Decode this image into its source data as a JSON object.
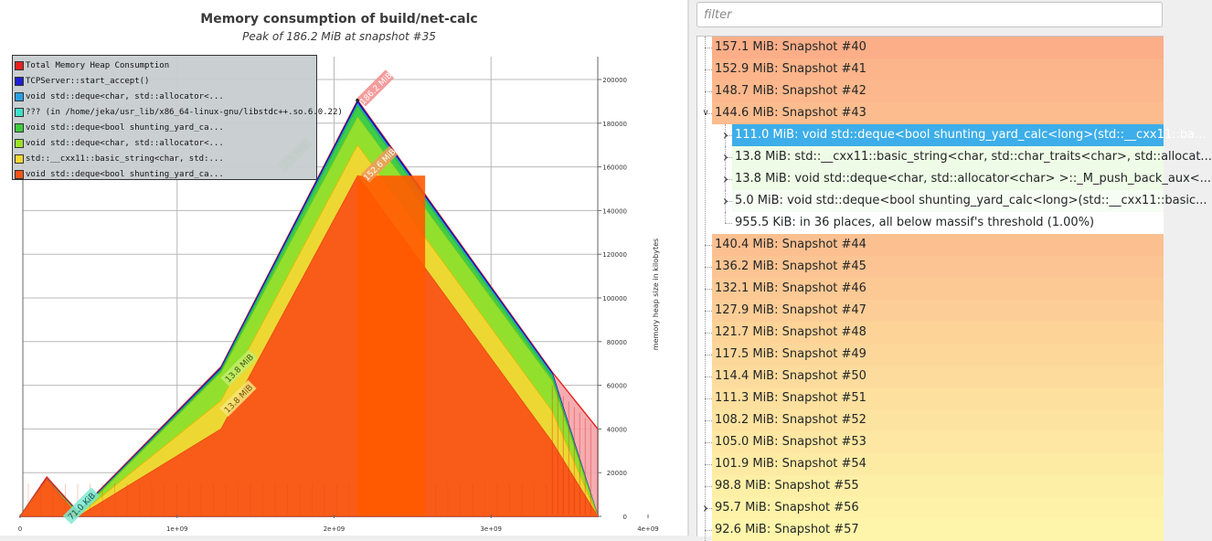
{
  "chart": {
    "title": "Memory consumption of build/net-calc",
    "subtitle": "Peak of 186.2 MiB at snapshot #35",
    "y_axis_label": "memory heap size in kilobytes",
    "legend": [
      {
        "label": "Total Memory Heap Consumption",
        "color": "#e8211e"
      },
      {
        "label": "TCPServer::start_accept()",
        "color": "#1f1fd0"
      },
      {
        "label": "void std::deque<char, std::allocator<...",
        "color": "#2b9ee3"
      },
      {
        "label": "??? (in /home/jeka/usr_lib/x86_64-linux-gnu/libstdc++.so.6.0.22)",
        "color": "#41e0c8"
      },
      {
        "label": "void std::deque<bool shunting_yard_ca...",
        "color": "#3dcc3d"
      },
      {
        "label": "void std::deque<char, std::allocator<...",
        "color": "#9be22a"
      },
      {
        "label": "std::__cxx11::basic_string<char, std:...",
        "color": "#f7d734"
      },
      {
        "label": "void std::deque<bool shunting_yard_ca...",
        "color": "#fa5418"
      }
    ],
    "annotations": [
      "186.2 MiB",
      "152.6 MiB",
      "7.5 MiB",
      "13.8 MiB",
      "13.8 MiB",
      "71.0 KiB"
    ]
  },
  "chart_data": {
    "type": "area",
    "title": "Memory consumption of build/net-calc",
    "subtitle": "Peak of 186.2 MiB at snapshot #35",
    "ylabel": "memory heap size in kilobytes",
    "xlim": [
      0,
      4000000000
    ],
    "ylim": [
      0,
      200000
    ],
    "x_ticks": [
      "0",
      "1e+09",
      "2e+09",
      "3e+09",
      "4e+09"
    ],
    "y_ticks": [
      "0",
      "20000",
      "40000",
      "60000",
      "80000",
      "100000",
      "120000",
      "140000",
      "160000",
      "180000",
      "200000"
    ],
    "x": [
      0,
      170000000,
      370000000,
      1280000000,
      2150000000,
      3390000000,
      3680000000
    ],
    "series": [
      {
        "name": "void std::deque<bool shunting_yard_ca...",
        "values": [
          0,
          17000,
          0,
          40000,
          156000,
          34000,
          0
        ]
      },
      {
        "name": "std::__cxx11::basic_string<char, std:...",
        "values": [
          0,
          17000,
          500,
          53000,
          170000,
          48000,
          0
        ]
      },
      {
        "name": "void std::deque<char, std::allocator<...",
        "values": [
          0,
          17000,
          1000,
          66000,
          183000,
          62000,
          0
        ]
      },
      {
        "name": "void std::deque<bool shunting_yard_ca...",
        "values": [
          0,
          17000,
          1200,
          67000,
          188000,
          64000,
          0
        ]
      },
      {
        "name": "??? (in /home/jeka/usr_lib/x86_64-linux-gnu/libstdc++.so.6.0.22)",
        "values": [
          0,
          17000,
          1300,
          67000,
          188500,
          64500,
          0
        ]
      },
      {
        "name": "void std::deque<char, std::allocator<...",
        "values": [
          0,
          17000,
          1400,
          67500,
          189000,
          65000,
          0
        ]
      },
      {
        "name": "TCPServer::start_accept()",
        "values": [
          0,
          17000,
          1500,
          68000,
          190000,
          65500,
          0
        ]
      },
      {
        "name": "Total Memory Heap Consumption",
        "values": [
          0,
          18000,
          2000,
          68500,
          190500,
          66000,
          40000
        ]
      }
    ],
    "grid": true,
    "legend_position": "top-left"
  },
  "filter": {
    "placeholder": "filter"
  },
  "tree": {
    "rows": [
      {
        "label": "157.1 MiB: Snapshot #40",
        "level": 0,
        "arrow": "",
        "color": "#fcae88"
      },
      {
        "label": "152.9 MiB: Snapshot #41",
        "level": 0,
        "arrow": "",
        "color": "#fcb48a"
      },
      {
        "label": "148.7 MiB: Snapshot #42",
        "level": 0,
        "arrow": "",
        "color": "#fcb88c"
      },
      {
        "label": "144.6 MiB: Snapshot #43",
        "level": 0,
        "arrow": "∨",
        "color": "#fcbc8e"
      },
      {
        "label": "111.0 MiB: void std::deque<bool shunting_yard_calc<long>(std::__cxx11::ba...",
        "level": 1,
        "arrow": "›",
        "color": "#3daee9",
        "selected": true
      },
      {
        "label": "13.8 MiB: std::__cxx11::basic_string<char, std::char_traits<char>, std::allocat...",
        "level": 1,
        "arrow": "›",
        "color": "#eefbe6"
      },
      {
        "label": "13.8 MiB: void std::deque<char, std::allocator<char> >::_M_push_back_aux<...",
        "level": 1,
        "arrow": "›",
        "color": "#eefbe6"
      },
      {
        "label": "5.0 MiB: void std::deque<bool shunting_yard_calc<long>(std::__cxx11::basic...",
        "level": 1,
        "arrow": "›",
        "color": "#f6fdf2"
      },
      {
        "label": "955.5 KiB: in 36 places, all below massif's threshold (1.00%)",
        "level": 1,
        "arrow": "",
        "color": "#ffffff"
      },
      {
        "label": "140.4 MiB: Snapshot #44",
        "level": 0,
        "arrow": "",
        "color": "#fcc090"
      },
      {
        "label": "136.2 MiB: Snapshot #45",
        "level": 0,
        "arrow": "",
        "color": "#fcc492"
      },
      {
        "label": "132.1 MiB: Snapshot #46",
        "level": 0,
        "arrow": "",
        "color": "#fcc994"
      },
      {
        "label": "127.9 MiB: Snapshot #47",
        "level": 0,
        "arrow": "",
        "color": "#fccd96"
      },
      {
        "label": "121.7 MiB: Snapshot #48",
        "level": 0,
        "arrow": "",
        "color": "#fdd398"
      },
      {
        "label": "117.5 MiB: Snapshot #49",
        "level": 0,
        "arrow": "",
        "color": "#fdd79a"
      },
      {
        "label": "114.4 MiB: Snapshot #50",
        "level": 0,
        "arrow": "",
        "color": "#fddb9c"
      },
      {
        "label": "111.3 MiB: Snapshot #51",
        "level": 0,
        "arrow": "",
        "color": "#fddf9e"
      },
      {
        "label": "108.2 MiB: Snapshot #52",
        "level": 0,
        "arrow": "",
        "color": "#fde3a0"
      },
      {
        "label": "105.0 MiB: Snapshot #53",
        "level": 0,
        "arrow": "",
        "color": "#fde7a2"
      },
      {
        "label": "101.9 MiB: Snapshot #54",
        "level": 0,
        "arrow": "",
        "color": "#fdeba4"
      },
      {
        "label": "98.8 MiB: Snapshot #55",
        "level": 0,
        "arrow": "",
        "color": "#fdefa6"
      },
      {
        "label": "95.7 MiB: Snapshot #56",
        "level": 0,
        "arrow": "›",
        "color": "#fef2a8"
      },
      {
        "label": "92.6 MiB: Snapshot #57",
        "level": 0,
        "arrow": "",
        "color": "#fef5aa"
      }
    ]
  }
}
